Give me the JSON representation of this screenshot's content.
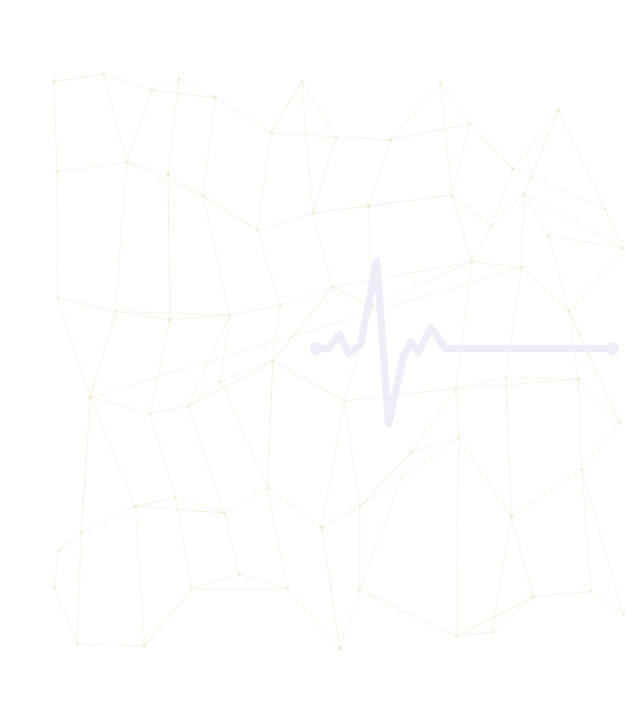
{
  "colors": {
    "background": "#ffffff",
    "network": "#f6f1df",
    "network_node": "#f1ead2",
    "pulse_line": "#eeeef8"
  },
  "icons": {
    "background": "network-pattern",
    "foreground": "heartbeat-line-icon"
  }
}
